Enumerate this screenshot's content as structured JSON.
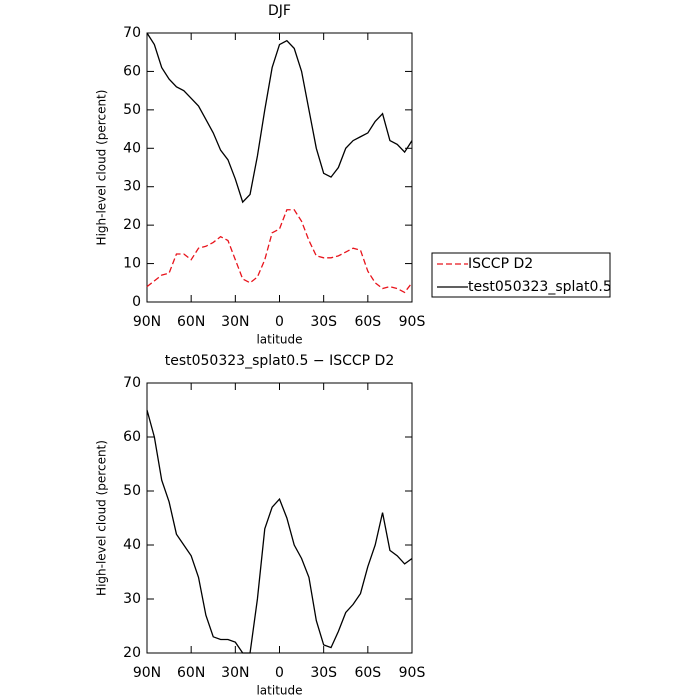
{
  "chart_data": [
    {
      "type": "line",
      "title": "DJF",
      "xlabel": "latitude",
      "ylabel": "High-level cloud (percent)",
      "x": [
        90,
        85,
        80,
        75,
        70,
        65,
        60,
        55,
        50,
        45,
        40,
        35,
        30,
        25,
        20,
        15,
        10,
        5,
        0,
        -5,
        -10,
        -15,
        -20,
        -25,
        -30,
        -35,
        -40,
        -45,
        -50,
        -55,
        -60,
        -65,
        -70,
        -75,
        -80,
        -85,
        -90
      ],
      "xlim": [
        90,
        -90
      ],
      "xticks": [
        {
          "value": 90,
          "label": "90N"
        },
        {
          "value": 60,
          "label": "60N"
        },
        {
          "value": 30,
          "label": "30N"
        },
        0,
        {
          "value": -30,
          "label": "30S"
        },
        {
          "value": -60,
          "label": "60S"
        },
        {
          "value": -90,
          "label": "90S"
        }
      ],
      "ylim": [
        0,
        70
      ],
      "yticks": [
        0,
        10,
        20,
        30,
        40,
        50,
        60,
        70
      ],
      "legend": "right",
      "series": [
        {
          "name": "ISCCP D2",
          "color": "#e8141c",
          "dashed": true,
          "values": [
            4,
            5.5,
            7,
            7.5,
            12.5,
            12.5,
            11,
            14,
            14.5,
            15.5,
            17,
            16,
            11,
            6,
            5,
            6.5,
            11,
            18,
            19,
            24,
            24,
            21,
            16,
            12,
            11.5,
            11.5,
            12,
            13,
            14,
            13.5,
            8,
            5,
            3.5,
            4,
            3.5,
            2.5,
            5
          ]
        },
        {
          "name": "test050323_splat0.5",
          "color": "#000000",
          "dashed": false,
          "values": [
            70,
            67,
            61,
            58,
            56,
            55,
            53,
            51,
            47.5,
            44,
            39.5,
            37,
            32,
            26,
            28,
            38,
            50,
            61,
            67,
            68,
            66,
            60,
            50,
            40,
            33.5,
            32.5,
            35,
            40,
            42,
            43,
            44,
            47,
            49,
            42,
            41,
            39,
            42
          ]
        }
      ]
    },
    {
      "type": "line",
      "title": "test050323_splat0.5 − ISCCP D2",
      "xlabel": "latitude",
      "ylabel": "High-level cloud (percent)",
      "x": [
        90,
        85,
        80,
        75,
        70,
        65,
        60,
        55,
        50,
        45,
        40,
        35,
        30,
        25,
        20,
        15,
        10,
        5,
        0,
        -5,
        -10,
        -15,
        -20,
        -25,
        -30,
        -35,
        -40,
        -45,
        -50,
        -55,
        -60,
        -65,
        -70,
        -75,
        -80,
        -85,
        -90
      ],
      "xlim": [
        90,
        -90
      ],
      "xticks": [
        {
          "value": 90,
          "label": "90N"
        },
        {
          "value": 60,
          "label": "60N"
        },
        {
          "value": 30,
          "label": "30N"
        },
        0,
        {
          "value": -30,
          "label": "30S"
        },
        {
          "value": -60,
          "label": "60S"
        },
        {
          "value": -90,
          "label": "90S"
        }
      ],
      "ylim": [
        20,
        70
      ],
      "yticks": [
        20,
        30,
        40,
        50,
        60,
        70
      ],
      "series": [
        {
          "color": "#000000",
          "dashed": false,
          "values": [
            65,
            60,
            52,
            48,
            42,
            40,
            38,
            34,
            27,
            23,
            22.5,
            22.5,
            22,
            20,
            20,
            30,
            43,
            47,
            48.5,
            45,
            40,
            37.5,
            34,
            26,
            21.5,
            21,
            24,
            27.5,
            29,
            31,
            36,
            40,
            46,
            39,
            38,
            36.5,
            37.5
          ]
        }
      ]
    }
  ]
}
